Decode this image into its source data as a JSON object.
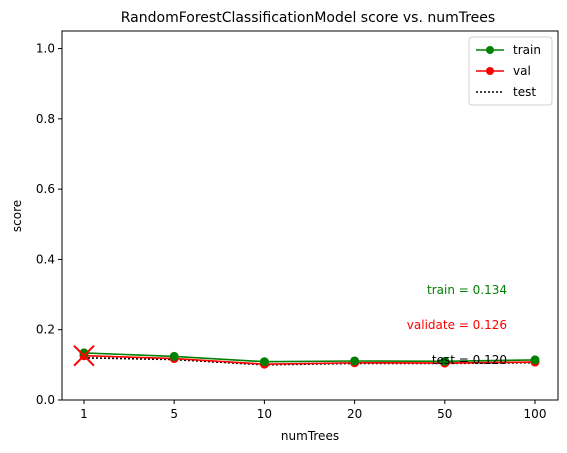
{
  "chart_data": {
    "type": "line",
    "title": "RandomForestClassificationModel score vs. numTrees",
    "xlabel": "numTrees",
    "ylabel": "score",
    "categories": [
      "1",
      "5",
      "10",
      "20",
      "50",
      "100"
    ],
    "ylim": [
      0,
      1.05
    ],
    "yticks": [
      "0.0",
      "0.2",
      "0.4",
      "0.6",
      "0.8",
      "1.0"
    ],
    "grid": false,
    "legend_position": "top-right",
    "series": [
      {
        "name": "train",
        "color": "#008000",
        "style": "solid-marker",
        "values": [
          0.134,
          0.124,
          0.109,
          0.111,
          0.11,
          0.114
        ]
      },
      {
        "name": "val",
        "color": "#ff0000",
        "style": "solid-marker",
        "values": [
          0.126,
          0.118,
          0.102,
          0.106,
          0.105,
          0.108
        ]
      },
      {
        "name": "test",
        "color": "#000000",
        "style": "dotted",
        "values": [
          0.12,
          0.115,
          0.1,
          0.104,
          0.104,
          0.106
        ]
      }
    ],
    "best_marker": {
      "category": "1",
      "value": 0.126,
      "color": "#ff0000",
      "shape": "x"
    },
    "annotations": [
      {
        "text": "train = 0.134",
        "color": "#008000"
      },
      {
        "text": "validate = 0.126",
        "color": "#ff0000"
      },
      {
        "text": "test = 0.120",
        "color": "#000000"
      }
    ]
  }
}
